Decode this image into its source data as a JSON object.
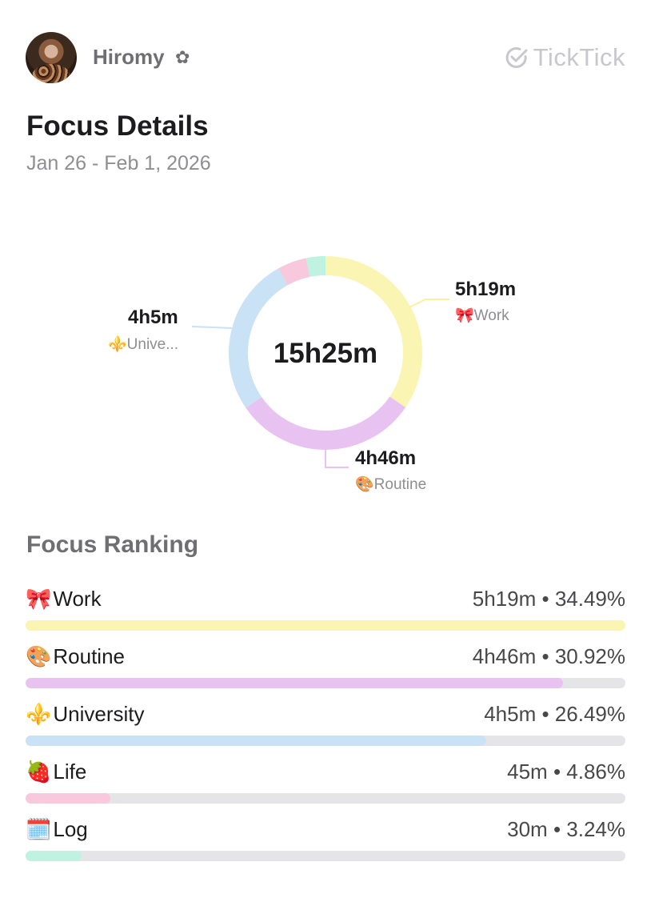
{
  "header": {
    "username": "Hiromy",
    "user_badge_icon": "flower-icon",
    "brand": "TickTick",
    "brand_icon": "check-circle-icon"
  },
  "title": "Focus Details",
  "date_range": "Jan 26 - Feb 1, 2026",
  "donut": {
    "total": "15h25m",
    "callouts": {
      "work": {
        "time": "5h19m",
        "emoji": "🎀",
        "label": "Work"
      },
      "routine": {
        "time": "4h46m",
        "emoji": "🎨",
        "label": "Routine"
      },
      "university": {
        "time": "4h5m",
        "emoji": "⚜️",
        "label": "Unive..."
      }
    }
  },
  "chart_data": {
    "type": "pie",
    "style": "donut",
    "center_text": "15h25m",
    "categories": [
      "Work",
      "Routine",
      "University",
      "Life",
      "Log"
    ],
    "values": [
      34.49,
      30.92,
      26.49,
      4.86,
      3.24
    ],
    "durations": [
      "5h19m",
      "4h46m",
      "4h5m",
      "45m",
      "30m"
    ],
    "colors": [
      "#fbf5b4",
      "#e8c3f2",
      "#c9e2f5",
      "#f8c8dc",
      "#bff2e0"
    ]
  },
  "ranking": {
    "title": "Focus Ranking",
    "items": [
      {
        "emoji": "🎀",
        "name": "Work",
        "value": "5h19m • 34.49%",
        "fraction": 1.0,
        "color": "#fbf5b4"
      },
      {
        "emoji": "🎨",
        "name": "Routine",
        "value": "4h46m • 30.92%",
        "fraction": 0.896,
        "color": "#e8c3f2"
      },
      {
        "emoji": "⚜️",
        "name": "University",
        "value": "4h5m • 26.49%",
        "fraction": 0.768,
        "color": "#c9e2f5"
      },
      {
        "emoji": "🍓",
        "name": "Life",
        "value": "45m • 4.86%",
        "fraction": 0.141,
        "color": "#f8c8dc"
      },
      {
        "emoji": "🗓️",
        "name": "Log",
        "value": "30m • 3.24%",
        "fraction": 0.094,
        "color": "#bff2e0"
      }
    ]
  }
}
